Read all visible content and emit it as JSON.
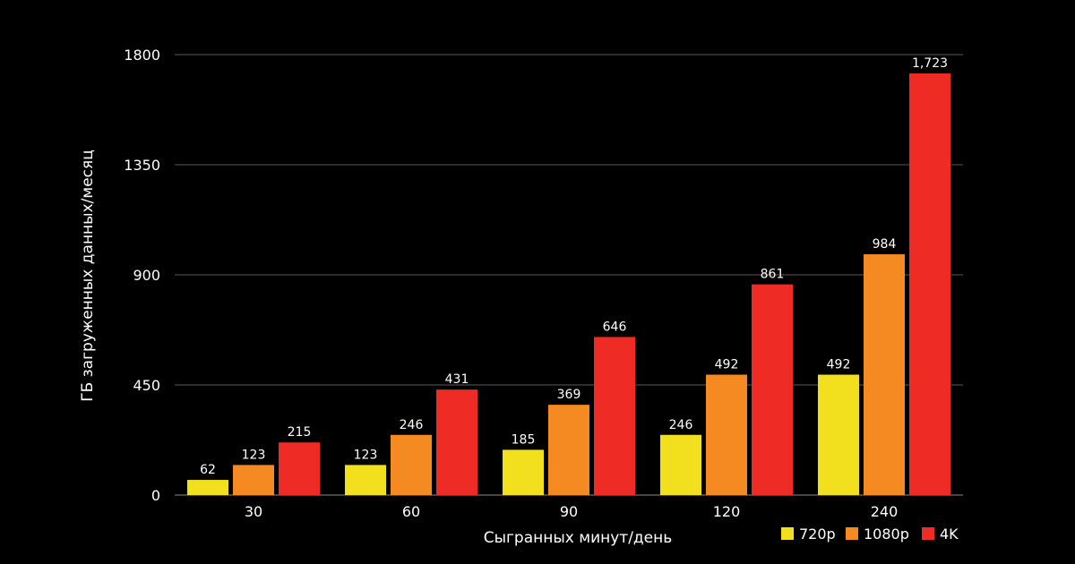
{
  "chart_data": {
    "type": "bar",
    "title": "",
    "xlabel": "Сыгранных минут/день",
    "ylabel": "ГБ загруженных данных/месяц",
    "categories": [
      "30",
      "60",
      "90",
      "120",
      "240"
    ],
    "ylim": [
      0,
      1800
    ],
    "yticks": [
      0,
      450,
      900,
      1350,
      1800
    ],
    "ytick_labels": [
      "0",
      "450",
      "900",
      "1350",
      "1800"
    ],
    "grid": true,
    "legend_position": "bottom-right",
    "series": [
      {
        "name": "720p",
        "color": "#f2e01e",
        "values": [
          62,
          123,
          185,
          246,
          492
        ],
        "labels": [
          "62",
          "123",
          "185",
          "246",
          "492"
        ]
      },
      {
        "name": "1080p",
        "color": "#f58a22",
        "values": [
          123,
          246,
          369,
          492,
          984
        ],
        "labels": [
          "123",
          "246",
          "369",
          "492",
          "984"
        ]
      },
      {
        "name": "4K",
        "color": "#ee2b24",
        "values": [
          215,
          431,
          646,
          861,
          1723
        ],
        "labels": [
          "215",
          "431",
          "646",
          "861",
          "1,723"
        ]
      }
    ]
  }
}
